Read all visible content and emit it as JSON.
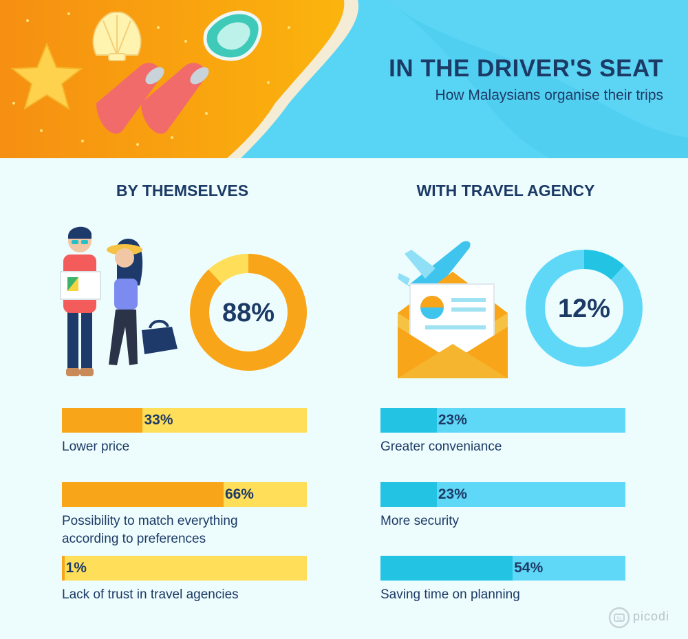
{
  "header": {
    "title": "IN THE DRIVER'S SEAT",
    "subtitle": "How Malaysians organise their trips"
  },
  "colors": {
    "navy": "#1c3a66",
    "orange_fill": "#f9a51a",
    "yellow_track": "#ffde59",
    "cyan_fill": "#22c3e3",
    "cyan_track": "#5fd8f8",
    "page_bg": "#edfcfd"
  },
  "chart_data": [
    {
      "type": "pie",
      "title": "BY THEMSELVES",
      "value": 88,
      "value_label": "88%",
      "fill_color": "#f9a51a",
      "track_color": "#ffde59"
    },
    {
      "type": "pie",
      "title": "WITH TRAVEL AGENCY",
      "value": 12,
      "value_label": "12%",
      "fill_color": "#22c3e3",
      "track_color": "#5fd8f8"
    },
    {
      "type": "bar",
      "title": "BY THEMSELVES",
      "categories": [
        "Lower price",
        "Possibility to match everything according to preferences",
        "Lack of trust in travel agencies"
      ],
      "values": [
        33,
        66,
        1
      ],
      "value_labels": [
        "33%",
        "66%",
        "1%"
      ],
      "xlim": [
        0,
        100
      ]
    },
    {
      "type": "bar",
      "title": "WITH TRAVEL AGENCY",
      "categories": [
        "Greater conveniance",
        "More security",
        "Saving time on planning"
      ],
      "values": [
        23,
        23,
        54
      ],
      "value_labels": [
        "23%",
        "23%",
        "54%"
      ],
      "xlim": [
        0,
        100
      ]
    }
  ],
  "brand": {
    "name": "picodi",
    "icon": "picodi-logo-icon"
  }
}
